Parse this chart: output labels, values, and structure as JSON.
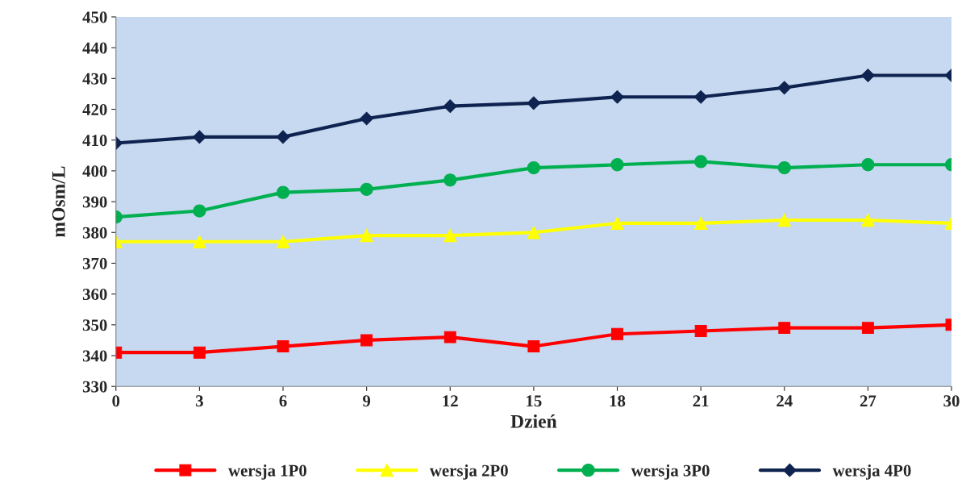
{
  "chart_data": {
    "type": "line",
    "xlabel": "Dzień",
    "ylabel": "mOsm/L",
    "x": [
      0,
      3,
      6,
      9,
      12,
      15,
      18,
      21,
      24,
      27,
      30
    ],
    "series": [
      {
        "name": "wersja 1P0",
        "color": "#ff0000",
        "marker": "square",
        "values": [
          341,
          341,
          343,
          345,
          346,
          343,
          347,
          348,
          349,
          349,
          350
        ]
      },
      {
        "name": "wersja 2P0",
        "color": "#ffff00",
        "marker": "triangle",
        "values": [
          377,
          377,
          377,
          379,
          379,
          380,
          383,
          383,
          384,
          384,
          383
        ]
      },
      {
        "name": "wersja 3P0",
        "color": "#00b050",
        "marker": "circle",
        "values": [
          385,
          387,
          393,
          394,
          397,
          401,
          402,
          403,
          401,
          402,
          402
        ]
      },
      {
        "name": "wersja 4P0",
        "color": "#0f2350",
        "marker": "diamond",
        "values": [
          409,
          411,
          411,
          417,
          421,
          422,
          424,
          424,
          427,
          431,
          431
        ]
      }
    ],
    "xlim": [
      0,
      30
    ],
    "xticks": [
      0,
      3,
      6,
      9,
      12,
      15,
      18,
      21,
      24,
      27,
      30
    ],
    "ylim": [
      330,
      450
    ],
    "yticks": [
      330,
      340,
      350,
      360,
      370,
      380,
      390,
      400,
      410,
      420,
      430,
      440,
      450
    ],
    "grid": false,
    "legend": "bottom",
    "line_style": "solid"
  }
}
